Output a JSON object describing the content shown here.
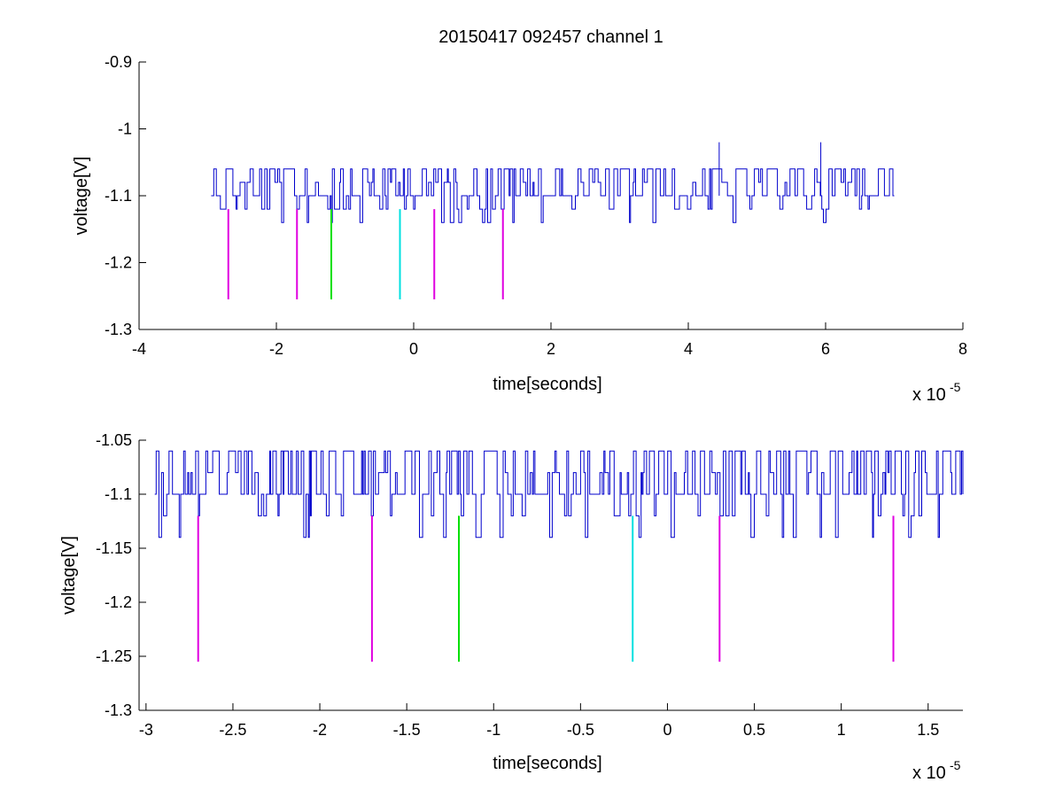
{
  "chart_data": [
    {
      "type": "line",
      "title": "20150417 092457 channel 1",
      "xlabel": "time[seconds]",
      "ylabel": "voltage[V]",
      "x_exponent_label": "x 10",
      "x_exponent": "-5",
      "xlim": [
        -4,
        8
      ],
      "ylim": [
        -1.3,
        -0.9
      ],
      "xticks": [
        -4,
        -2,
        0,
        2,
        4,
        6,
        8
      ],
      "xtick_labels": [
        "-4",
        "-2",
        "0",
        "2",
        "4",
        "6",
        "8"
      ],
      "yticks": [
        -1.3,
        -1.2,
        -1.1,
        -1.0,
        -0.9
      ],
      "ytick_labels": [
        "-1.3",
        "-1.2",
        "-1.1",
        "-1",
        "-0.9"
      ],
      "grid": false,
      "signal": {
        "color": "#0000cc",
        "x_range": [
          -2.95,
          7.0
        ],
        "baseline": -1.1,
        "levels": [
          -1.14,
          -1.12,
          -1.1,
          -1.08,
          -1.06
        ],
        "spikes": [
          {
            "x": 4.45,
            "y": -1.02
          },
          {
            "x": 5.93,
            "y": -1.02
          }
        ]
      },
      "markers": [
        {
          "x": -2.7,
          "y_top": -1.12,
          "y_bottom": -1.255,
          "color": "#e000e0"
        },
        {
          "x": -1.7,
          "y_top": -1.12,
          "y_bottom": -1.255,
          "color": "#e000e0"
        },
        {
          "x": -1.2,
          "y_top": -1.12,
          "y_bottom": -1.255,
          "color": "#00e000"
        },
        {
          "x": -0.2,
          "y_top": -1.12,
          "y_bottom": -1.255,
          "color": "#00e0e0"
        },
        {
          "x": 0.3,
          "y_top": -1.12,
          "y_bottom": -1.255,
          "color": "#e000e0"
        },
        {
          "x": 1.3,
          "y_top": -1.12,
          "y_bottom": -1.255,
          "color": "#e000e0"
        }
      ]
    },
    {
      "type": "line",
      "title": "",
      "xlabel": "time[seconds]",
      "ylabel": "voltage[V]",
      "x_exponent_label": "x 10",
      "x_exponent": "-5",
      "xlim": [
        -3.04,
        1.7
      ],
      "ylim": [
        -1.3,
        -1.05
      ],
      "xticks": [
        -3,
        -2.5,
        -2,
        -1.5,
        -1,
        -0.5,
        0,
        0.5,
        1,
        1.5
      ],
      "xtick_labels": [
        "-3",
        "-2.5",
        "-2",
        "-1.5",
        "-1",
        "-0.5",
        "0",
        "0.5",
        "1",
        "1.5"
      ],
      "yticks": [
        -1.3,
        -1.25,
        -1.2,
        -1.15,
        -1.1,
        -1.05
      ],
      "ytick_labels": [
        "-1.3",
        "-1.25",
        "-1.2",
        "-1.15",
        "-1.1",
        "-1.05"
      ],
      "grid": false,
      "signal": {
        "color": "#0000cc",
        "x_range": [
          -2.95,
          1.7
        ],
        "baseline": -1.1,
        "levels": [
          -1.14,
          -1.12,
          -1.1,
          -1.08,
          -1.06
        ],
        "spikes": []
      },
      "markers": [
        {
          "x": -2.7,
          "y_top": -1.12,
          "y_bottom": -1.255,
          "color": "#e000e0"
        },
        {
          "x": -1.7,
          "y_top": -1.12,
          "y_bottom": -1.255,
          "color": "#e000e0"
        },
        {
          "x": -1.2,
          "y_top": -1.12,
          "y_bottom": -1.255,
          "color": "#00e000"
        },
        {
          "x": -0.2,
          "y_top": -1.12,
          "y_bottom": -1.255,
          "color": "#00e0e0"
        },
        {
          "x": 0.3,
          "y_top": -1.12,
          "y_bottom": -1.255,
          "color": "#e000e0"
        },
        {
          "x": 1.3,
          "y_top": -1.12,
          "y_bottom": -1.255,
          "color": "#e000e0"
        }
      ]
    }
  ]
}
